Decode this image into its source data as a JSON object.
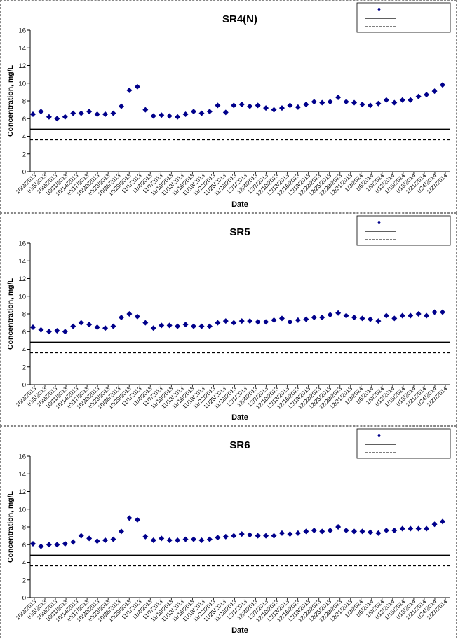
{
  "chart_data": [
    {
      "type": "scatter",
      "title": "SR4(N)",
      "xlabel": "Date",
      "ylabel": "Concentration, mg/L",
      "ylim": [
        0,
        16
      ],
      "yticks": [
        0,
        2,
        4,
        6,
        8,
        10,
        12,
        14,
        16
      ],
      "xtick_labels": [
        "10/2/2013",
        "10/5/2013",
        "10/8/2013",
        "10/11/2013",
        "10/14/2013",
        "10/17/2013",
        "10/20/2013",
        "10/23/2013",
        "10/26/2013",
        "10/29/2013",
        "11/1/2013",
        "11/4/2013",
        "11/7/2013",
        "11/10/2013",
        "11/13/2013",
        "11/16/2013",
        "11/19/2013",
        "11/22/2013",
        "11/25/2013",
        "11/28/2013",
        "12/1/2013",
        "12/4/2013",
        "12/7/2013",
        "12/10/2013",
        "12/13/2013",
        "12/16/2013",
        "12/19/2013",
        "12/22/2013",
        "12/25/2013",
        "12/28/2013",
        "12/31/2013",
        "1/3/2014",
        "1/6/2014",
        "1/9/2014",
        "1/12/2014",
        "1/15/2014",
        "1/18/2014",
        "1/21/2014",
        "1/24/2014",
        "1/27/2014"
      ],
      "series": [
        {
          "marker": "diamond",
          "color": "#00008b",
          "values": [
            6.5,
            6.8,
            6.2,
            6.0,
            6.2,
            6.6,
            6.6,
            6.8,
            6.5,
            6.5,
            6.6,
            7.4,
            9.2,
            9.6,
            7.0,
            6.3,
            6.4,
            6.3,
            6.2,
            6.5,
            6.8,
            6.6,
            6.8,
            7.5,
            6.7,
            7.5,
            7.6,
            7.4,
            7.5,
            7.2,
            7.0,
            7.2,
            7.5,
            7.3,
            7.6,
            7.9,
            7.8,
            7.9,
            8.4,
            7.9,
            7.8,
            7.6,
            7.5,
            7.7,
            8.1,
            7.8,
            8.1,
            8.1,
            8.5,
            8.7,
            9.1,
            9.8
          ]
        },
        {
          "line": "solid",
          "color": "#000000",
          "value": 4.8
        },
        {
          "line": "dashed",
          "color": "#000000",
          "value": 3.6
        }
      ]
    },
    {
      "type": "scatter",
      "title": "SR5",
      "xlabel": "Date",
      "ylabel": "Concentration, mg/L",
      "ylim": [
        0,
        16
      ],
      "yticks": [
        0,
        2,
        4,
        6,
        8,
        10,
        12,
        14,
        16
      ],
      "xtick_labels": [
        "10/2/2013",
        "10/5/2013",
        "10/8/2013",
        "10/11/2013",
        "10/14/2013",
        "10/17/2013",
        "10/20/2013",
        "10/23/2013",
        "10/26/2013",
        "10/29/2013",
        "11/1/2013",
        "11/4/2013",
        "11/7/2013",
        "11/10/2013",
        "11/13/2013",
        "11/16/2013",
        "11/19/2013",
        "11/22/2013",
        "11/25/2013",
        "11/28/2013",
        "12/1/2013",
        "12/4/2013",
        "12/7/2013",
        "12/10/2013",
        "12/13/2013",
        "12/16/2013",
        "12/19/2013",
        "12/22/2013",
        "12/25/2013",
        "12/28/2013",
        "12/31/2013",
        "1/3/2014",
        "1/6/2014",
        "1/9/2014",
        "1/12/2014",
        "1/15/2014",
        "1/18/2014",
        "1/21/2014",
        "1/24/2014",
        "1/27/2014"
      ],
      "series": [
        {
          "marker": "diamond",
          "color": "#00008b",
          "values": [
            6.5,
            6.2,
            6.0,
            6.1,
            6.0,
            6.6,
            7.0,
            6.8,
            6.5,
            6.4,
            6.6,
            7.6,
            8.0,
            7.7,
            7.0,
            6.4,
            6.7,
            6.7,
            6.6,
            6.8,
            6.6,
            6.6,
            6.6,
            7.0,
            7.2,
            7.0,
            7.2,
            7.2,
            7.1,
            7.1,
            7.3,
            7.5,
            7.1,
            7.3,
            7.4,
            7.6,
            7.6,
            7.9,
            8.1,
            7.8,
            7.6,
            7.5,
            7.4,
            7.2,
            7.8,
            7.5,
            7.8,
            7.8,
            8.0,
            7.8,
            8.2,
            8.2
          ]
        },
        {
          "line": "solid",
          "color": "#000000",
          "value": 4.8
        },
        {
          "line": "dashed",
          "color": "#000000",
          "value": 3.6
        }
      ]
    },
    {
      "type": "scatter",
      "title": "SR6",
      "xlabel": "Date",
      "ylabel": "Concentration, mg/L",
      "ylim": [
        0,
        16
      ],
      "yticks": [
        0,
        2,
        4,
        6,
        8,
        10,
        12,
        14,
        16
      ],
      "xtick_labels": [
        "10/2/2013",
        "10/5/2013",
        "10/8/2013",
        "10/11/2013",
        "10/14/2013",
        "10/17/2013",
        "10/20/2013",
        "10/23/2013",
        "10/26/2013",
        "10/29/2013",
        "11/1/2013",
        "11/4/2013",
        "11/7/2013",
        "11/10/2013",
        "11/13/2013",
        "11/16/2013",
        "11/19/2013",
        "11/22/2013",
        "11/25/2013",
        "11/28/2013",
        "12/1/2013",
        "12/4/2013",
        "12/7/2013",
        "12/10/2013",
        "12/13/2013",
        "12/16/2013",
        "12/19/2013",
        "12/22/2013",
        "12/25/2013",
        "12/28/2013",
        "12/31/2013",
        "1/3/2014",
        "1/6/2014",
        "1/9/2014",
        "1/12/2014",
        "1/15/2014",
        "1/18/2014",
        "1/21/2014",
        "1/24/2014",
        "1/27/2014"
      ],
      "series": [
        {
          "marker": "diamond",
          "color": "#00008b",
          "values": [
            6.1,
            5.8,
            6.0,
            6.0,
            6.1,
            6.3,
            7.0,
            6.7,
            6.4,
            6.5,
            6.6,
            7.5,
            9.0,
            8.8,
            6.9,
            6.5,
            6.7,
            6.5,
            6.5,
            6.6,
            6.6,
            6.5,
            6.6,
            6.8,
            6.9,
            7.0,
            7.2,
            7.1,
            7.0,
            7.0,
            7.0,
            7.3,
            7.2,
            7.3,
            7.5,
            7.6,
            7.5,
            7.6,
            8.0,
            7.6,
            7.5,
            7.5,
            7.4,
            7.3,
            7.6,
            7.6,
            7.8,
            7.8,
            7.8,
            7.8,
            8.3,
            8.6
          ]
        },
        {
          "line": "solid",
          "color": "#000000",
          "value": 4.8
        },
        {
          "line": "dashed",
          "color": "#000000",
          "value": 3.6
        }
      ]
    }
  ]
}
